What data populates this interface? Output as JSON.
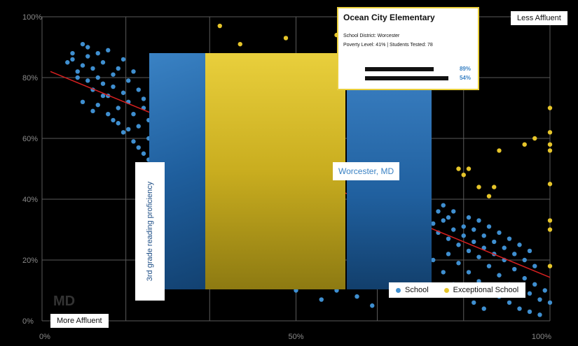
{
  "colors": {
    "school": "#3f8fd0",
    "exceptional": "#e6c52a",
    "trend": "#d72020",
    "grid": "#5a5a5a"
  },
  "chart_data": {
    "type": "scatter",
    "xlim": [
      0,
      100
    ],
    "ylim": [
      0,
      100
    ],
    "x_ticks": [
      "0%",
      "50%",
      "100%"
    ],
    "y_ticks": [
      "0%",
      "20%",
      "40%",
      "60%",
      "80%",
      "100%"
    ],
    "x_end_labels": {
      "left": "More Affluent",
      "right": "Less Affluent"
    },
    "ylabel": "3rd grade reading proficiency",
    "grid": true,
    "legend": {
      "position": "bottom-right",
      "entries": [
        {
          "label": "School",
          "key": "school"
        },
        {
          "label": "Exceptional School",
          "key": "exceptional"
        }
      ]
    },
    "series": [
      {
        "name": "School",
        "key": "school",
        "points": [
          [
            5,
            85
          ],
          [
            6,
            86
          ],
          [
            6,
            88
          ],
          [
            7,
            82
          ],
          [
            7,
            80
          ],
          [
            8,
            91
          ],
          [
            8,
            84
          ],
          [
            9,
            87
          ],
          [
            9,
            79
          ],
          [
            10,
            83
          ],
          [
            10,
            76
          ],
          [
            11,
            88
          ],
          [
            11,
            80
          ],
          [
            12,
            78
          ],
          [
            12,
            85
          ],
          [
            13,
            74
          ],
          [
            13,
            89
          ],
          [
            14,
            81
          ],
          [
            14,
            77
          ],
          [
            15,
            83
          ],
          [
            15,
            70
          ],
          [
            16,
            86
          ],
          [
            16,
            75
          ],
          [
            17,
            79
          ],
          [
            17,
            72
          ],
          [
            18,
            82
          ],
          [
            18,
            68
          ],
          [
            19,
            76
          ],
          [
            19,
            64
          ],
          [
            20,
            73
          ],
          [
            20,
            70
          ],
          [
            21,
            60
          ],
          [
            21,
            66
          ],
          [
            22,
            71
          ],
          [
            23,
            58
          ],
          [
            23,
            63
          ],
          [
            24,
            67
          ],
          [
            25,
            56
          ],
          [
            26,
            61
          ],
          [
            27,
            52
          ],
          [
            28,
            48
          ],
          [
            9,
            90
          ],
          [
            11,
            71
          ],
          [
            13,
            68
          ],
          [
            15,
            65
          ],
          [
            16,
            62
          ],
          [
            18,
            59
          ],
          [
            20,
            55
          ],
          [
            22,
            50
          ],
          [
            24,
            45
          ],
          [
            8,
            72
          ],
          [
            10,
            69
          ],
          [
            12,
            74
          ],
          [
            14,
            66
          ],
          [
            17,
            63
          ],
          [
            19,
            57
          ],
          [
            21,
            53
          ],
          [
            25,
            50
          ],
          [
            27,
            46
          ],
          [
            29,
            42
          ],
          [
            75,
            38
          ],
          [
            76,
            35
          ],
          [
            77,
            32
          ],
          [
            78,
            29
          ],
          [
            79,
            33
          ],
          [
            80,
            27
          ],
          [
            80,
            22
          ],
          [
            81,
            30
          ],
          [
            82,
            25
          ],
          [
            82,
            19
          ],
          [
            83,
            28
          ],
          [
            84,
            23
          ],
          [
            84,
            16
          ],
          [
            85,
            26
          ],
          [
            86,
            21
          ],
          [
            86,
            13
          ],
          [
            87,
            24
          ],
          [
            88,
            18
          ],
          [
            88,
            11
          ],
          [
            89,
            22
          ],
          [
            90,
            15
          ],
          [
            90,
            8
          ],
          [
            91,
            20
          ],
          [
            92,
            12
          ],
          [
            92,
            6
          ],
          [
            93,
            17
          ],
          [
            94,
            10
          ],
          [
            94,
            4
          ],
          [
            95,
            14
          ],
          [
            96,
            9
          ],
          [
            96,
            3
          ],
          [
            97,
            12
          ],
          [
            98,
            7
          ],
          [
            98,
            2
          ],
          [
            99,
            10
          ],
          [
            100,
            6
          ],
          [
            78,
            36
          ],
          [
            80,
            34
          ],
          [
            83,
            31
          ],
          [
            85,
            30
          ],
          [
            87,
            28
          ],
          [
            89,
            26
          ],
          [
            91,
            24
          ],
          [
            93,
            22
          ],
          [
            95,
            20
          ],
          [
            97,
            18
          ],
          [
            76,
            40
          ],
          [
            79,
            38
          ],
          [
            81,
            36
          ],
          [
            84,
            34
          ],
          [
            86,
            33
          ],
          [
            88,
            31
          ],
          [
            90,
            29
          ],
          [
            92,
            27
          ],
          [
            94,
            25
          ],
          [
            96,
            23
          ],
          [
            77,
            20
          ],
          [
            79,
            16
          ],
          [
            81,
            12
          ],
          [
            83,
            9
          ],
          [
            85,
            6
          ],
          [
            87,
            4
          ],
          [
            70,
            20
          ],
          [
            72,
            15
          ],
          [
            74,
            11
          ],
          [
            62,
            8
          ],
          [
            65,
            5
          ],
          [
            58,
            10
          ],
          [
            55,
            7
          ],
          [
            52,
            14
          ],
          [
            50,
            10
          ]
        ]
      },
      {
        "name": "Exceptional School",
        "key": "exceptional",
        "points": [
          [
            35,
            97
          ],
          [
            58,
            94
          ],
          [
            48,
            93
          ],
          [
            39,
            91
          ],
          [
            90,
            56
          ],
          [
            95,
            58
          ],
          [
            97,
            60
          ],
          [
            100,
            70
          ],
          [
            100,
            62
          ],
          [
            100,
            58
          ],
          [
            100,
            56
          ],
          [
            100,
            45
          ],
          [
            100,
            33
          ],
          [
            82,
            50
          ],
          [
            83,
            48
          ],
          [
            86,
            44
          ],
          [
            88,
            41
          ],
          [
            89,
            44
          ],
          [
            84,
            50
          ],
          [
            100,
            18
          ],
          [
            100,
            30
          ]
        ]
      }
    ],
    "trend": {
      "x": [
        0,
        100
      ],
      "y": [
        82,
        12
      ]
    }
  },
  "tooltip": {
    "school": "Ocean City Elementary",
    "district": "School District: Worcester",
    "stats": "Poverty Level: 41% | Students Tested: 78",
    "bars": [
      {
        "value": "89%",
        "pct": 89
      },
      {
        "value": "54%",
        "pct": 54
      }
    ]
  },
  "location": "Worcester, MD",
  "watermark": "MD"
}
